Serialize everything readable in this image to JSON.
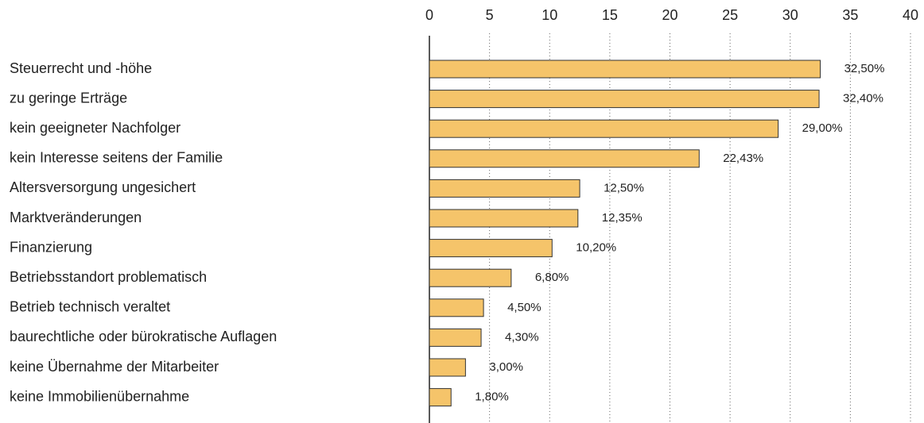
{
  "chart_data": {
    "type": "bar",
    "orientation": "horizontal",
    "categories": [
      "Steuerrecht und -höhe",
      "zu geringe Erträge",
      "kein geeigneter Nachfolger",
      "kein Interesse seitens der Familie",
      "Altersversorgung ungesichert",
      "Marktveränderungen",
      "Finanzierung",
      "Betriebsstandort problematisch",
      "Betrieb technisch veraltet",
      "baurechtliche oder bürokratische Auflagen",
      "keine Übernahme der Mitarbeiter",
      "keine Immobilienübernahme"
    ],
    "values": [
      32.5,
      32.4,
      29.0,
      22.43,
      12.5,
      12.35,
      10.2,
      6.8,
      4.5,
      4.3,
      3.0,
      1.8
    ],
    "value_labels": [
      "32,50%",
      "32,40%",
      "29,00%",
      "22,43%",
      "12,50%",
      "12,35%",
      "10,20%",
      "6,80%",
      "4,50%",
      "4,30%",
      "3,00%",
      "1,80%"
    ],
    "color": "#f5c46a",
    "xlim": [
      0,
      40
    ],
    "xticks": [
      0,
      5,
      10,
      15,
      20,
      25,
      30,
      35,
      40
    ],
    "grid": true
  }
}
